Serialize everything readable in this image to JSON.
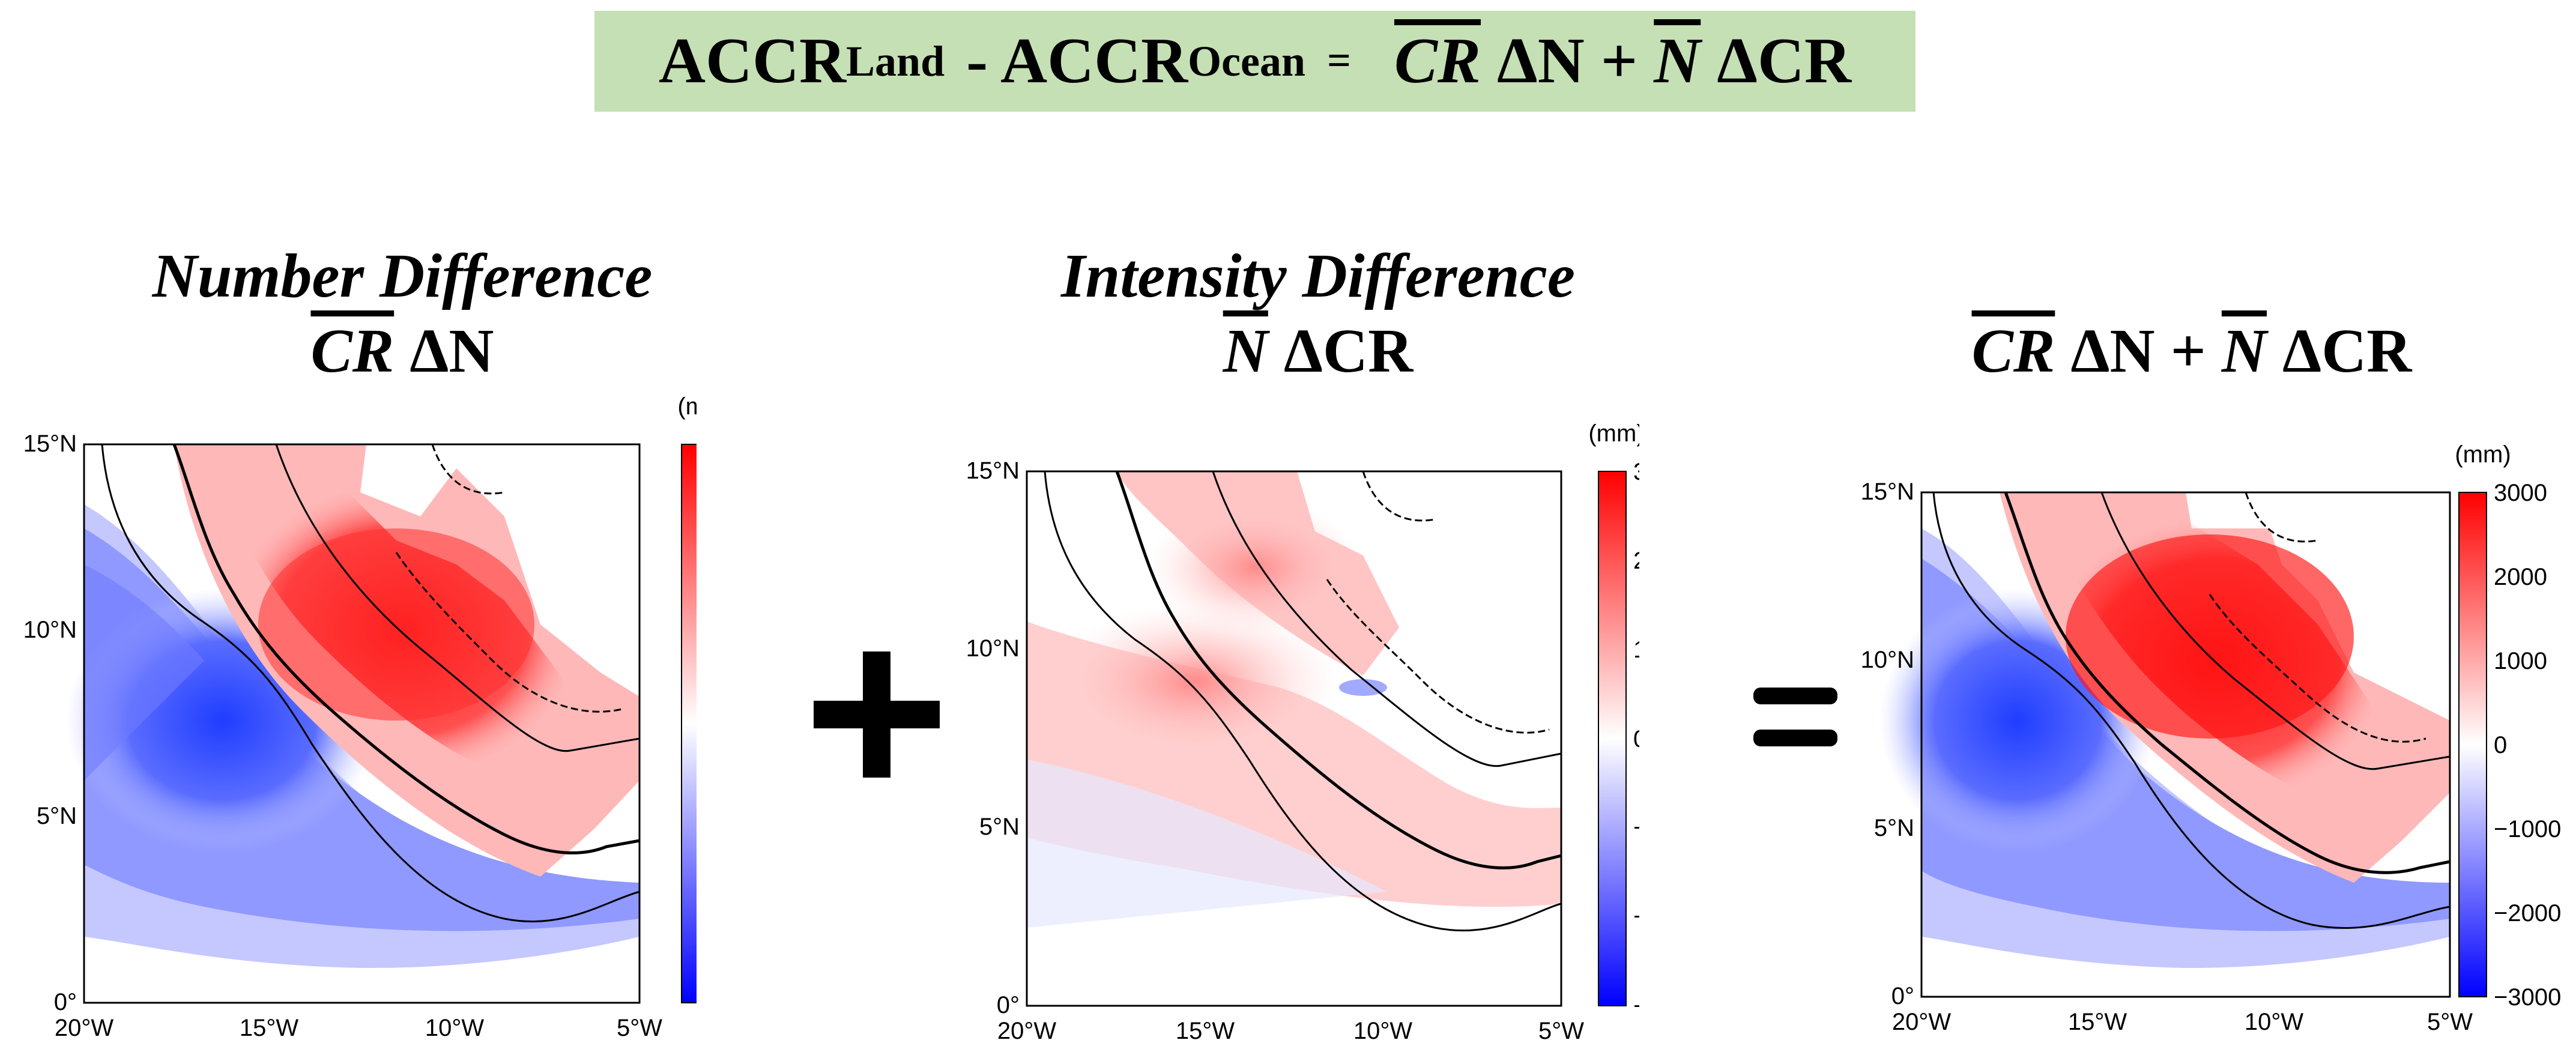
{
  "header": {
    "accr": "ACCR",
    "land": "Land",
    "minus": "- ACCR",
    "ocean": "Ocean",
    "equals": "=",
    "cr": "CR",
    "dn": "ΔN +",
    "n": "N",
    "dcr": "ΔCR"
  },
  "panels": [
    {
      "title": "Number Difference",
      "formula_a": "CR",
      "formula_b": "ΔN",
      "formula_c": ""
    },
    {
      "title": "Intensity Difference",
      "formula_a": "N",
      "formula_b": "ΔCR",
      "formula_c": ""
    },
    {
      "title": "",
      "formula_a": "CR",
      "formula_b": "ΔN +",
      "formula_c": "N",
      "formula_d": "ΔCR"
    }
  ],
  "operators": {
    "plus": "+",
    "equals": "="
  },
  "maps": {
    "x_ticks": [
      "20°W",
      "15°W",
      "10°W",
      "5°W"
    ],
    "y_ticks": [
      "0°",
      "5°N",
      "10°N",
      "15°N"
    ],
    "colorbar_unit": "(mm)",
    "colorbar_ticks": [
      "3000",
      "2000",
      "1000",
      "0",
      "−1000",
      "−2000",
      "−3000"
    ],
    "colorbar_range": [
      -3000,
      3000
    ],
    "colors": {
      "high": "#ff0000",
      "mid": "#ffffff",
      "low": "#0000ff"
    }
  }
}
